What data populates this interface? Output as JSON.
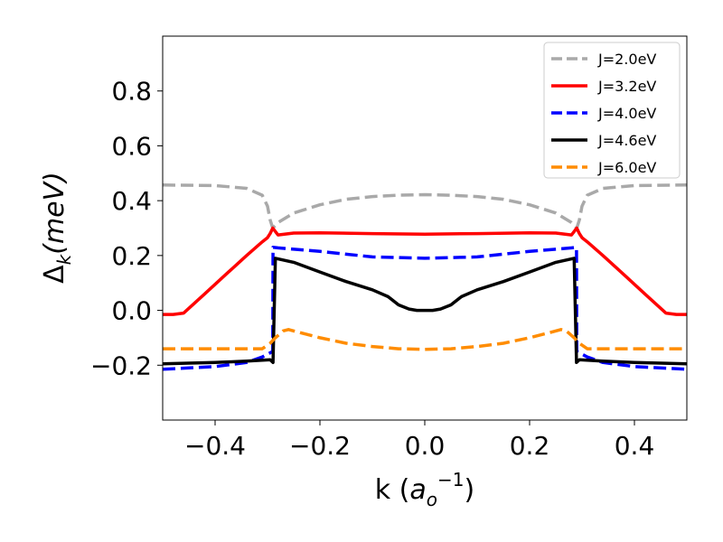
{
  "chart_data": {
    "type": "line",
    "title": "",
    "xlabel": "k (a_o^{-1})",
    "xlabel_parts": {
      "prefix": "k (",
      "base": "a",
      "sub": "o",
      "sup": "−1",
      "suffix": ")"
    },
    "ylabel": "Δ_k(meV)",
    "ylabel_parts": {
      "base": "Δ",
      "sub": "k",
      "rest": "(meV)"
    },
    "xlim": [
      -0.5,
      0.5
    ],
    "ylim": [
      -0.4,
      1.0
    ],
    "xticks": [
      -0.4,
      -0.2,
      0.0,
      0.2,
      0.4
    ],
    "xtick_labels": [
      "−0.4",
      "−0.2",
      "0.0",
      "0.2",
      "0.4"
    ],
    "yticks": [
      -0.2,
      0.0,
      0.2,
      0.4,
      0.6,
      0.8
    ],
    "ytick_labels": [
      "−0.2",
      "0.0",
      "0.2",
      "0.4",
      "0.6",
      "0.8"
    ],
    "grid": false,
    "legend_position": "top-right",
    "series": [
      {
        "name": "J=2.0eV",
        "color": "#a9a9a9",
        "dash": "dashed",
        "x": [
          -0.5,
          -0.4,
          -0.34,
          -0.31,
          -0.3,
          -0.295,
          -0.29,
          -0.28,
          -0.25,
          -0.2,
          -0.15,
          -0.1,
          -0.05,
          0.0,
          0.05,
          0.1,
          0.15,
          0.2,
          0.25,
          0.28,
          0.29,
          0.295,
          0.3,
          0.31,
          0.34,
          0.4,
          0.5
        ],
        "y": [
          0.457,
          0.455,
          0.445,
          0.42,
          0.38,
          0.33,
          0.3,
          0.32,
          0.355,
          0.385,
          0.405,
          0.415,
          0.42,
          0.422,
          0.42,
          0.415,
          0.405,
          0.385,
          0.355,
          0.32,
          0.3,
          0.33,
          0.38,
          0.42,
          0.445,
          0.455,
          0.457
        ]
      },
      {
        "name": "J=3.2eV",
        "color": "#ff0000",
        "dash": "solid",
        "x": [
          -0.5,
          -0.48,
          -0.46,
          -0.42,
          -0.38,
          -0.34,
          -0.31,
          -0.3,
          -0.295,
          -0.29,
          -0.28,
          -0.25,
          -0.2,
          -0.1,
          0.0,
          0.1,
          0.2,
          0.25,
          0.28,
          0.29,
          0.295,
          0.3,
          0.31,
          0.34,
          0.38,
          0.42,
          0.46,
          0.48,
          0.5
        ],
        "y": [
          -0.015,
          -0.015,
          -0.01,
          0.06,
          0.13,
          0.2,
          0.25,
          0.265,
          0.28,
          0.3,
          0.275,
          0.282,
          0.283,
          0.28,
          0.278,
          0.28,
          0.283,
          0.282,
          0.275,
          0.3,
          0.28,
          0.265,
          0.25,
          0.2,
          0.13,
          0.06,
          -0.01,
          -0.015,
          -0.015
        ]
      },
      {
        "name": "J=4.0eV",
        "color": "#0000ff",
        "dash": "dashed",
        "x": [
          -0.5,
          -0.4,
          -0.34,
          -0.31,
          -0.295,
          -0.29,
          -0.2895,
          -0.28,
          -0.2,
          -0.1,
          0.0,
          0.1,
          0.2,
          0.28,
          0.2895,
          0.29,
          0.295,
          0.31,
          0.34,
          0.4,
          0.5
        ],
        "y": [
          -0.215,
          -0.205,
          -0.19,
          -0.17,
          -0.155,
          -0.15,
          0.23,
          0.228,
          0.215,
          0.195,
          0.19,
          0.195,
          0.215,
          0.228,
          0.23,
          -0.15,
          -0.155,
          -0.17,
          -0.19,
          -0.205,
          -0.215
        ]
      },
      {
        "name": "J=4.6eV",
        "color": "#000000",
        "dash": "solid",
        "x": [
          -0.5,
          -0.4,
          -0.34,
          -0.295,
          -0.2895,
          -0.285,
          -0.25,
          -0.2,
          -0.15,
          -0.1,
          -0.07,
          -0.05,
          -0.03,
          -0.015,
          0.0,
          0.015,
          0.03,
          0.05,
          0.07,
          0.1,
          0.15,
          0.2,
          0.25,
          0.285,
          0.2895,
          0.295,
          0.34,
          0.4,
          0.5
        ],
        "y": [
          -0.195,
          -0.19,
          -0.185,
          -0.18,
          -0.19,
          0.19,
          0.175,
          0.14,
          0.105,
          0.075,
          0.05,
          0.02,
          0.005,
          0.0,
          0.0,
          0.0,
          0.005,
          0.02,
          0.05,
          0.075,
          0.105,
          0.14,
          0.175,
          0.19,
          -0.19,
          -0.18,
          -0.185,
          -0.19,
          -0.195
        ]
      },
      {
        "name": "J=6.0eV",
        "color": "#ff8c00",
        "dash": "dashed",
        "x": [
          -0.5,
          -0.4,
          -0.31,
          -0.295,
          -0.285,
          -0.27,
          -0.26,
          -0.24,
          -0.2,
          -0.15,
          -0.1,
          -0.05,
          0.0,
          0.05,
          0.1,
          0.15,
          0.2,
          0.24,
          0.26,
          0.27,
          0.285,
          0.295,
          0.31,
          0.4,
          0.5
        ],
        "y": [
          -0.14,
          -0.14,
          -0.14,
          -0.12,
          -0.1,
          -0.075,
          -0.07,
          -0.08,
          -0.1,
          -0.12,
          -0.132,
          -0.14,
          -0.142,
          -0.14,
          -0.132,
          -0.12,
          -0.1,
          -0.08,
          -0.07,
          -0.075,
          -0.1,
          -0.12,
          -0.14,
          -0.14,
          -0.14
        ]
      }
    ]
  }
}
